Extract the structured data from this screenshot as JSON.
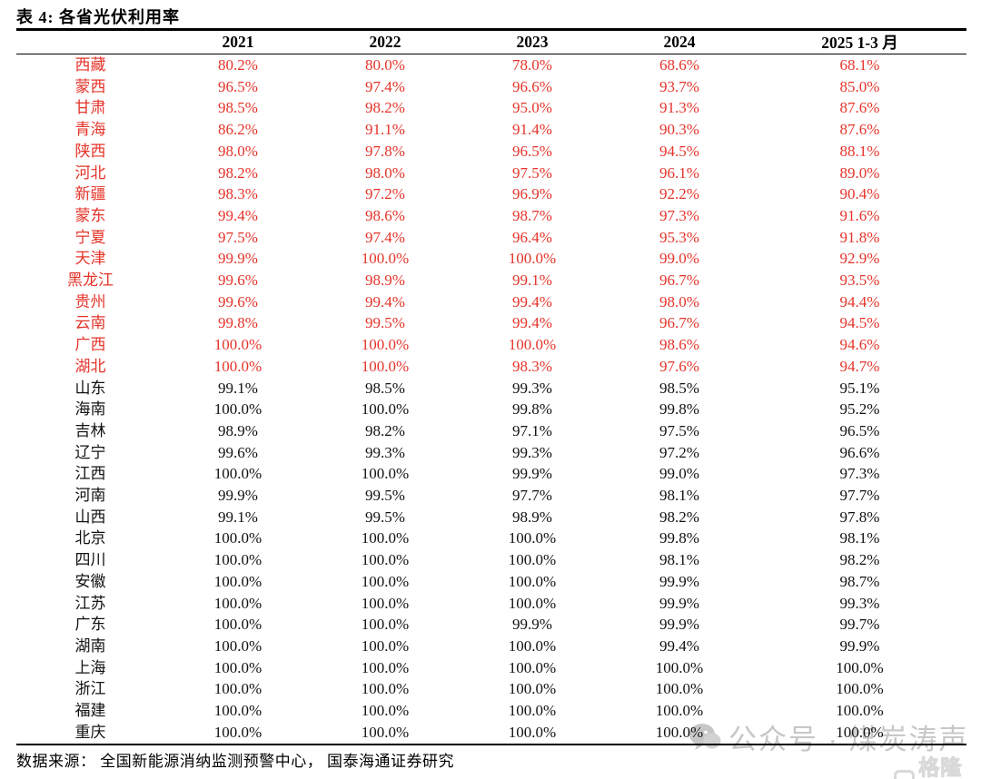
{
  "page": {
    "title": "表 4:  各省光伏利用率",
    "source_note": "数据来源： 全国新能源消纳监测预警中心， 国泰海通证券研究"
  },
  "colors": {
    "highlight_red": "#e5342a",
    "text_black": "#121212",
    "watermark_gray": "#c7c7c7",
    "logo_gray": "#d9d9d9"
  },
  "watermark": {
    "icon": "wechat-icon",
    "text": "公众号 · 煤炭涛声"
  },
  "logo": {
    "icon": "gelonghui-g-icon",
    "text": "格隆汇"
  },
  "chart_data": {
    "type": "table",
    "title": "表 4: 各省光伏利用率",
    "columns": [
      "",
      "2021",
      "2022",
      "2023",
      "2024",
      "2025 1-3 月"
    ],
    "rows": [
      {
        "province": "西藏",
        "values": [
          "80.2%",
          "80.0%",
          "78.0%",
          "68.6%",
          "68.1%"
        ],
        "highlight": true
      },
      {
        "province": "蒙西",
        "values": [
          "96.5%",
          "97.4%",
          "96.6%",
          "93.7%",
          "85.0%"
        ],
        "highlight": true
      },
      {
        "province": "甘肃",
        "values": [
          "98.5%",
          "98.2%",
          "95.0%",
          "91.3%",
          "87.6%"
        ],
        "highlight": true
      },
      {
        "province": "青海",
        "values": [
          "86.2%",
          "91.1%",
          "91.4%",
          "90.3%",
          "87.6%"
        ],
        "highlight": true
      },
      {
        "province": "陕西",
        "values": [
          "98.0%",
          "97.8%",
          "96.5%",
          "94.5%",
          "88.1%"
        ],
        "highlight": true
      },
      {
        "province": "河北",
        "values": [
          "98.2%",
          "98.0%",
          "97.5%",
          "96.1%",
          "89.0%"
        ],
        "highlight": true
      },
      {
        "province": "新疆",
        "values": [
          "98.3%",
          "97.2%",
          "96.9%",
          "92.2%",
          "90.4%"
        ],
        "highlight": true
      },
      {
        "province": "蒙东",
        "values": [
          "99.4%",
          "98.6%",
          "98.7%",
          "97.3%",
          "91.6%"
        ],
        "highlight": true
      },
      {
        "province": "宁夏",
        "values": [
          "97.5%",
          "97.4%",
          "96.4%",
          "95.3%",
          "91.8%"
        ],
        "highlight": true
      },
      {
        "province": "天津",
        "values": [
          "99.9%",
          "100.0%",
          "100.0%",
          "99.0%",
          "92.9%"
        ],
        "highlight": true
      },
      {
        "province": "黑龙江",
        "values": [
          "99.6%",
          "98.9%",
          "99.1%",
          "96.7%",
          "93.5%"
        ],
        "highlight": true
      },
      {
        "province": "贵州",
        "values": [
          "99.6%",
          "99.4%",
          "99.4%",
          "98.0%",
          "94.4%"
        ],
        "highlight": true
      },
      {
        "province": "云南",
        "values": [
          "99.8%",
          "99.5%",
          "99.4%",
          "96.7%",
          "94.5%"
        ],
        "highlight": true
      },
      {
        "province": "广西",
        "values": [
          "100.0%",
          "100.0%",
          "100.0%",
          "98.6%",
          "94.6%"
        ],
        "highlight": true
      },
      {
        "province": "湖北",
        "values": [
          "100.0%",
          "100.0%",
          "98.3%",
          "97.6%",
          "94.7%"
        ],
        "highlight": true
      },
      {
        "province": "山东",
        "values": [
          "99.1%",
          "98.5%",
          "99.3%",
          "98.5%",
          "95.1%"
        ],
        "highlight": false
      },
      {
        "province": "海南",
        "values": [
          "100.0%",
          "100.0%",
          "99.8%",
          "99.8%",
          "95.2%"
        ],
        "highlight": false
      },
      {
        "province": "吉林",
        "values": [
          "98.9%",
          "98.2%",
          "97.1%",
          "97.5%",
          "96.5%"
        ],
        "highlight": false
      },
      {
        "province": "辽宁",
        "values": [
          "99.6%",
          "99.3%",
          "99.3%",
          "97.2%",
          "96.6%"
        ],
        "highlight": false
      },
      {
        "province": "江西",
        "values": [
          "100.0%",
          "100.0%",
          "99.9%",
          "99.0%",
          "97.3%"
        ],
        "highlight": false
      },
      {
        "province": "河南",
        "values": [
          "99.9%",
          "99.5%",
          "97.7%",
          "98.1%",
          "97.7%"
        ],
        "highlight": false
      },
      {
        "province": "山西",
        "values": [
          "99.1%",
          "99.5%",
          "98.9%",
          "98.2%",
          "97.8%"
        ],
        "highlight": false
      },
      {
        "province": "北京",
        "values": [
          "100.0%",
          "100.0%",
          "100.0%",
          "99.8%",
          "98.1%"
        ],
        "highlight": false
      },
      {
        "province": "四川",
        "values": [
          "100.0%",
          "100.0%",
          "100.0%",
          "98.1%",
          "98.2%"
        ],
        "highlight": false
      },
      {
        "province": "安徽",
        "values": [
          "100.0%",
          "100.0%",
          "100.0%",
          "99.9%",
          "98.7%"
        ],
        "highlight": false
      },
      {
        "province": "江苏",
        "values": [
          "100.0%",
          "100.0%",
          "100.0%",
          "99.9%",
          "99.3%"
        ],
        "highlight": false
      },
      {
        "province": "广东",
        "values": [
          "100.0%",
          "100.0%",
          "99.9%",
          "99.9%",
          "99.7%"
        ],
        "highlight": false
      },
      {
        "province": "湖南",
        "values": [
          "100.0%",
          "100.0%",
          "100.0%",
          "99.4%",
          "99.9%"
        ],
        "highlight": false
      },
      {
        "province": "上海",
        "values": [
          "100.0%",
          "100.0%",
          "100.0%",
          "100.0%",
          "100.0%"
        ],
        "highlight": false
      },
      {
        "province": "浙江",
        "values": [
          "100.0%",
          "100.0%",
          "100.0%",
          "100.0%",
          "100.0%"
        ],
        "highlight": false
      },
      {
        "province": "福建",
        "values": [
          "100.0%",
          "100.0%",
          "100.0%",
          "100.0%",
          "100.0%"
        ],
        "highlight": false
      },
      {
        "province": "重庆",
        "values": [
          "100.0%",
          "100.0%",
          "100.0%",
          "100.0%",
          "100.0%"
        ],
        "highlight": false
      }
    ]
  }
}
